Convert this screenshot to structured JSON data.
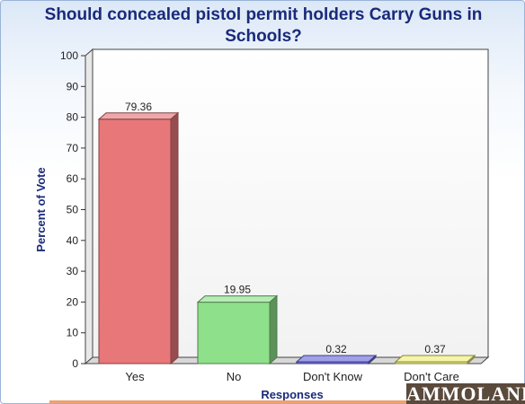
{
  "chart_data": {
    "type": "bar",
    "title": "Should concealed pistol permit holders Carry Guns in Schools?",
    "title_lines": [
      "Should concealed pistol permit holders Carry Guns in",
      "Schools?"
    ],
    "xlabel": "Responses",
    "ylabel": "Percent of Vote",
    "ylim": [
      0,
      100
    ],
    "yticks": [
      0,
      10,
      20,
      30,
      40,
      50,
      60,
      70,
      80,
      90,
      100
    ],
    "categories": [
      "Yes",
      "No",
      "Don't Know",
      "Don't Care"
    ],
    "values": [
      79.36,
      19.95,
      0.32,
      0.37
    ],
    "data_labels": [
      "79.36",
      "19.95",
      "0.32",
      "0.37"
    ],
    "colors": [
      "#e8777a",
      "#8ee08a",
      "#6f6fe0",
      "#f0f07a"
    ],
    "grid": false,
    "legend": "none"
  },
  "watermark": "AMMOLAND"
}
